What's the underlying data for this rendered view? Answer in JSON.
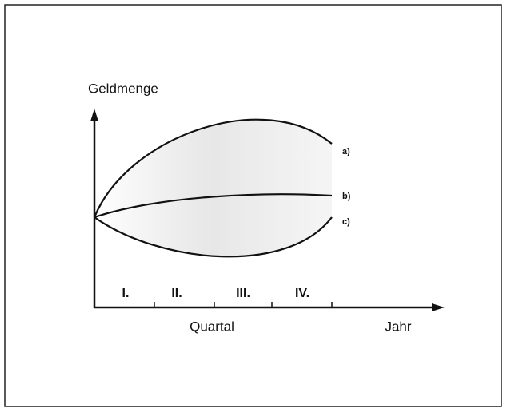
{
  "y_label": "Geldmenge",
  "x_label": "Quartal",
  "x_end_label": "Jahr",
  "quarters": [
    "I.",
    "II.",
    "III.",
    "IV."
  ],
  "curves": [
    "a)",
    "b)",
    "c)"
  ]
}
